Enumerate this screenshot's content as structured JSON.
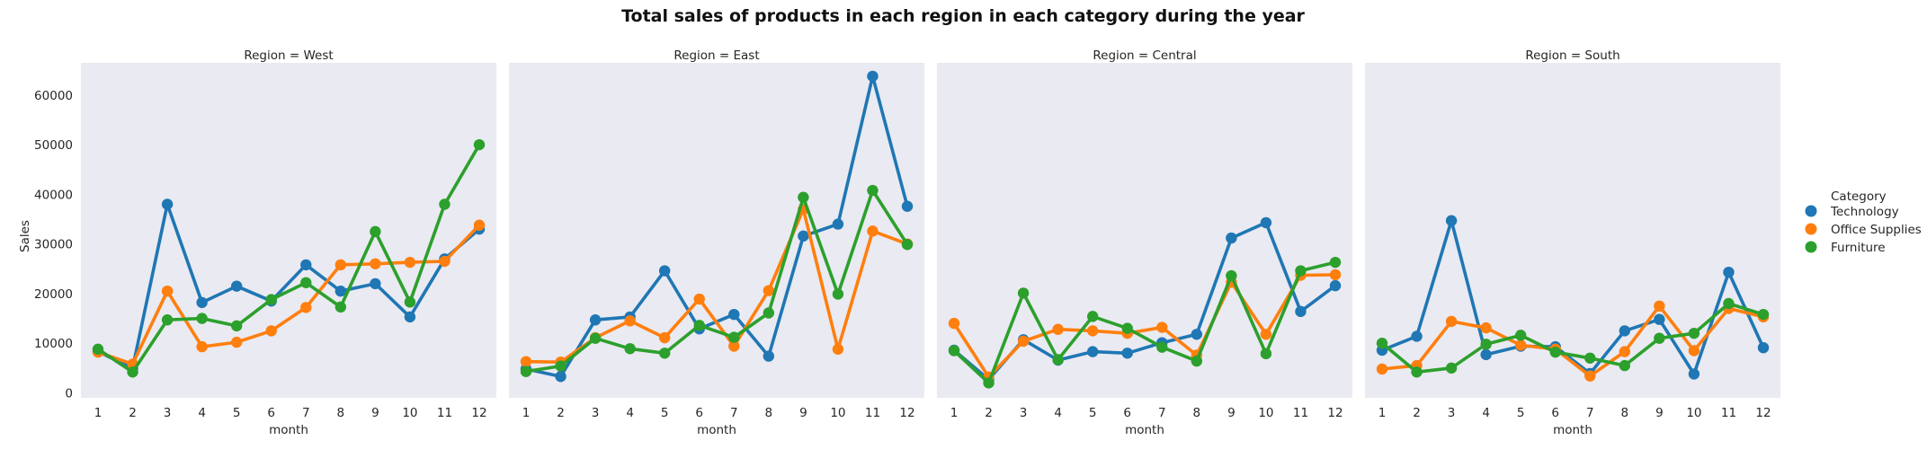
{
  "chart_data": {
    "type": "line",
    "title": "Total sales of products in each region in each category during the year",
    "xlabel": "month",
    "ylabel": "Sales",
    "categories": [
      "1",
      "2",
      "3",
      "4",
      "5",
      "6",
      "7",
      "8",
      "9",
      "10",
      "11",
      "12"
    ],
    "ylim": [
      -1000,
      66500
    ],
    "yticks": [
      "0",
      "10000",
      "20000",
      "30000",
      "40000",
      "50000",
      "60000"
    ],
    "grid": false,
    "legend": {
      "title": "Category",
      "placement": "right",
      "entries": [
        "Technology",
        "Office Supplies",
        "Furniture"
      ]
    },
    "colors": {
      "Technology": "#1f77b4",
      "Office Supplies": "#ff7f0e",
      "Furniture": "#2ca02c",
      "panel_bg": "#eaeaf2"
    },
    "panels": [
      {
        "title": "Region = West",
        "series": [
          {
            "name": "Technology",
            "values": [
              8300,
              5000,
              38000,
              18200,
              21500,
              18500,
              25800,
              20500,
              22000,
              15300,
              27000,
              33000
            ]
          },
          {
            "name": "Office Supplies",
            "values": [
              8200,
              5800,
              20500,
              9300,
              10200,
              12500,
              17200,
              25800,
              26000,
              26300,
              26500,
              33800
            ]
          },
          {
            "name": "Furniture",
            "values": [
              8800,
              4200,
              14700,
              15000,
              13500,
              18800,
              22200,
              17300,
              32500,
              18300,
              38000,
              50000
            ]
          }
        ]
      },
      {
        "title": "Region = East",
        "series": [
          {
            "name": "Technology",
            "values": [
              4800,
              3300,
              14700,
              15300,
              24600,
              12900,
              15800,
              7400,
              31600,
              34000,
              63800,
              37600
            ]
          },
          {
            "name": "Office Supplies",
            "values": [
              6300,
              6200,
              11100,
              14500,
              11100,
              18900,
              9400,
              20600,
              37000,
              8800,
              32600,
              30000
            ]
          },
          {
            "name": "Furniture",
            "values": [
              4300,
              5400,
              11000,
              8900,
              8000,
              13600,
              11200,
              16100,
              39400,
              19900,
              40800,
              29900
            ]
          }
        ]
      },
      {
        "title": "Region = Central",
        "series": [
          {
            "name": "Technology",
            "values": [
              8600,
              2700,
              10700,
              6600,
              8300,
              8000,
              10100,
              11800,
              31200,
              34300,
              16400,
              21600
            ]
          },
          {
            "name": "Office Supplies",
            "values": [
              14000,
              3200,
              10400,
              12800,
              12500,
              12000,
              13200,
              7600,
              22300,
              11800,
              23700,
              23800
            ]
          },
          {
            "name": "Furniture",
            "values": [
              8500,
              2000,
              20100,
              6700,
              15400,
              13000,
              9200,
              6400,
              23600,
              7900,
              24600,
              26300
            ]
          }
        ]
      },
      {
        "title": "Region = South",
        "series": [
          {
            "name": "Technology",
            "values": [
              8600,
              11400,
              34700,
              7700,
              9400,
              9300,
              3900,
              12500,
              14800,
              3800,
              24300,
              9100
            ]
          },
          {
            "name": "Office Supplies",
            "values": [
              4800,
              5500,
              14400,
              13100,
              9600,
              8800,
              3400,
              8300,
              17500,
              8500,
              17000,
              15300
            ]
          },
          {
            "name": "Furniture",
            "values": [
              10000,
              4200,
              5000,
              9800,
              11600,
              8200,
              7000,
              5500,
              11000,
              12000,
              18000,
              15800
            ]
          }
        ]
      }
    ]
  }
}
